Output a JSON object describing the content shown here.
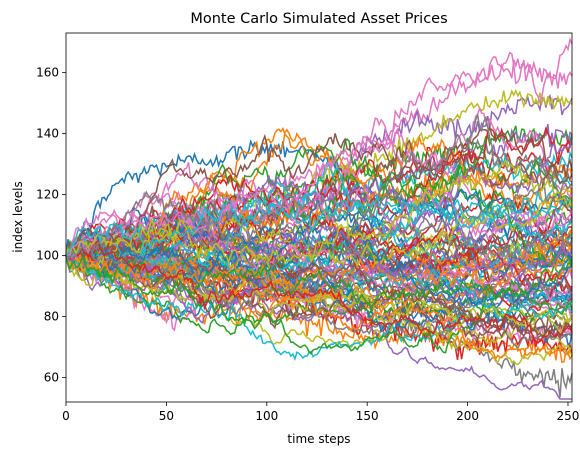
{
  "chart_data": {
    "type": "line",
    "title": "Monte Carlo Simulated Asset Prices",
    "xlabel": "time steps",
    "ylabel": "index levels",
    "xlim": [
      0,
      252
    ],
    "ylim": [
      52,
      173
    ],
    "xticks": [
      0,
      50,
      100,
      150,
      200,
      250
    ],
    "yticks": [
      60,
      80,
      100,
      120,
      140,
      160
    ],
    "grid": false,
    "legend": "none",
    "n_series": 100,
    "start_value": 100,
    "series_colors": [
      "#1f77b4",
      "#ff7f0e",
      "#2ca02c",
      "#d62728",
      "#9467bd",
      "#8c564b",
      "#e377c2",
      "#7f7f7f",
      "#bcbd22",
      "#17becf"
    ],
    "series": [
      {
        "x": [
          0,
          25,
          50,
          75,
          100,
          125,
          150,
          175,
          200,
          225,
          252
        ],
        "values": [
          100,
          124,
          130,
          132,
          136,
          134,
          120,
          118,
          112,
          108,
          106
        ],
        "color": "#1f77b4"
      },
      {
        "x": [
          0,
          25,
          50,
          75,
          100,
          125,
          150,
          175,
          200,
          225,
          252
        ],
        "values": [
          100,
          104,
          108,
          116,
          122,
          128,
          134,
          146,
          156,
          162,
          157
        ],
        "color": "#e377c2"
      },
      {
        "x": [
          0,
          25,
          50,
          75,
          100,
          125,
          150,
          175,
          200,
          225,
          252
        ],
        "values": [
          100,
          102,
          104,
          108,
          112,
          118,
          136,
          145,
          140,
          150,
          149
        ],
        "color": "#9467bd"
      },
      {
        "x": [
          0,
          25,
          50,
          75,
          100,
          125,
          150,
          175,
          200,
          225,
          252
        ],
        "values": [
          100,
          101,
          106,
          112,
          118,
          124,
          130,
          138,
          148,
          152,
          150
        ],
        "color": "#bcbd22"
      },
      {
        "x": [
          0,
          25,
          50,
          75,
          100,
          125,
          150,
          175,
          200,
          225,
          252
        ],
        "values": [
          100,
          95,
          93,
          90,
          88,
          84,
          80,
          76,
          72,
          62,
          59
        ],
        "color": "#7f7f7f"
      },
      {
        "x": [
          0,
          25,
          50,
          75,
          100,
          125,
          150,
          175,
          200,
          225,
          252
        ],
        "values": [
          100,
          90,
          82,
          80,
          80,
          78,
          72,
          74,
          72,
          70,
          68
        ],
        "color": "#ff7f0e"
      },
      {
        "x": [
          0,
          25,
          50,
          75,
          100,
          125,
          150,
          175,
          200,
          225,
          252
        ],
        "values": [
          100,
          92,
          78,
          85,
          88,
          82,
          80,
          82,
          76,
          74,
          76
        ],
        "color": "#e377c2"
      },
      {
        "x": [
          0,
          25,
          50,
          75,
          100,
          125,
          150,
          175,
          200,
          225,
          252
        ],
        "values": [
          100,
          96,
          92,
          90,
          86,
          82,
          76,
          74,
          70,
          72,
          70
        ],
        "color": "#d62728"
      },
      {
        "x": [
          0,
          25,
          50,
          75,
          100,
          125,
          150,
          175,
          200,
          225,
          252
        ],
        "values": [
          100,
          104,
          112,
          118,
          120,
          124,
          128,
          132,
          136,
          140,
          138
        ],
        "color": "#2ca02c"
      },
      {
        "x": [
          0,
          25,
          50,
          75,
          100,
          125,
          150,
          175,
          200,
          225,
          252
        ],
        "values": [
          100,
          108,
          114,
          116,
          118,
          120,
          124,
          126,
          130,
          128,
          132
        ],
        "color": "#17becf"
      },
      {
        "x": [
          0,
          25,
          50,
          75,
          100,
          125,
          150,
          175,
          200,
          225,
          252
        ],
        "values": [
          100,
          103,
          106,
          112,
          116,
          118,
          122,
          128,
          132,
          138,
          140
        ],
        "color": "#9467bd"
      },
      {
        "x": [
          0,
          25,
          50,
          75,
          100,
          125,
          150,
          175,
          200,
          225,
          252
        ],
        "values": [
          100,
          98,
          96,
          94,
          92,
          90,
          86,
          84,
          80,
          78,
          74
        ],
        "color": "#1f77b4"
      },
      {
        "x": [
          0,
          25,
          50,
          75,
          100,
          125,
          150,
          175,
          200,
          225,
          252
        ],
        "values": [
          100,
          97,
          94,
          92,
          90,
          88,
          84,
          82,
          80,
          78,
          76
        ],
        "color": "#8c564b"
      },
      {
        "x": [
          0,
          25,
          50,
          75,
          100,
          125,
          150,
          175,
          200,
          225,
          252
        ],
        "values": [
          100,
          102,
          106,
          110,
          112,
          114,
          118,
          122,
          126,
          124,
          128
        ],
        "color": "#ff7f0e"
      }
    ]
  }
}
